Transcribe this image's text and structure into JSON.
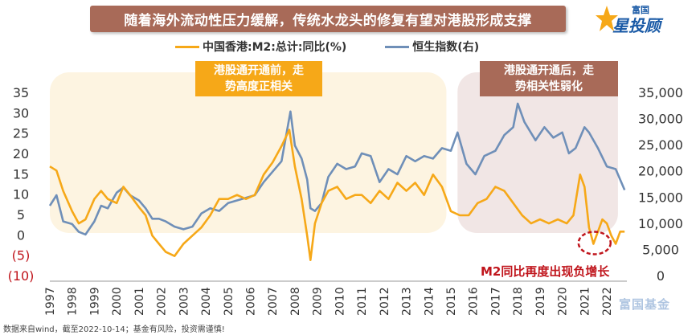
{
  "title": "随着海外流动性压力缓解，传统水龙头的修复有望对港股形成支撑",
  "logo": {
    "small_text": "富国",
    "big_text": "星投顾",
    "mark_icon": "star-logo-icon"
  },
  "footnote": "数据来自wind，截至2022-10-14；基金有风险，投资需谨慎!",
  "watermark": "富国基金",
  "annotations": {
    "left_box": [
      "港股通开通前，走",
      "势高度正相关"
    ],
    "right_box": [
      "港股通开通后，走",
      "势相关性弱化"
    ],
    "negative_label": "M2同比再度出现负增长"
  },
  "colors": {
    "m2": "#f6a818",
    "hsi": "#6f8fb8",
    "left_zone": "#fdf4e1",
    "right_zone": "#f1e6e5",
    "circle": "#c0151c",
    "neg_label": "#c0151c"
  },
  "chart_data": {
    "type": "line",
    "title": "随着海外流动性压力缓解，传统水龙头的修复有望对港股形成支撑",
    "legend": [
      "中国香港:M2:总计:同比(%)",
      "恒生指数(右)"
    ],
    "legend_position": "top",
    "x_tick_labels": [
      "1997",
      "1998",
      "1999",
      "2000",
      "2001",
      "2002",
      "2003",
      "2004",
      "2005",
      "2006",
      "2007",
      "2008",
      "2009",
      "2010",
      "2011",
      "2012",
      "2013",
      "2014",
      "2015",
      "2016",
      "2017",
      "2018",
      "2019",
      "2020",
      "2021",
      "2022"
    ],
    "xlim": [
      1997,
      2022.9
    ],
    "y_left": {
      "label": "",
      "ylim": [
        -10,
        35
      ],
      "tick_labels": [
        "35",
        "30",
        "25",
        "20",
        "15",
        "10",
        "5",
        "0",
        "(5)",
        "(10)"
      ],
      "tick_values": [
        35,
        30,
        25,
        20,
        15,
        10,
        5,
        0,
        -5,
        -10
      ]
    },
    "y_right": {
      "label": "",
      "ylim": [
        0,
        35000
      ],
      "tick_labels": [
        "35,000",
        "30,000",
        "25,000",
        "20,000",
        "15,000",
        "10,000",
        "5,000",
        "0"
      ],
      "tick_values": [
        35000,
        30000,
        25000,
        20000,
        15000,
        10000,
        5000,
        0
      ]
    },
    "shaded_regions": [
      {
        "name": "港股通开通前",
        "x_range": [
          1997,
          2014.8
        ]
      },
      {
        "name": "港股通开通后",
        "x_range": [
          2015.3,
          2022.5
        ]
      }
    ],
    "series": [
      {
        "name": "中国香港:M2:总计:同比(%)",
        "axis": "left",
        "x": [
          1997.0,
          1997.3,
          1997.6,
          1998.0,
          1998.3,
          1998.6,
          1999.0,
          1999.3,
          1999.6,
          2000.0,
          2000.3,
          2000.6,
          2001.0,
          2001.3,
          2001.6,
          2001.9,
          2002.2,
          2002.6,
          2003.0,
          2003.4,
          2003.8,
          2004.2,
          2004.6,
          2005.0,
          2005.4,
          2005.8,
          2006.2,
          2006.6,
          2007.0,
          2007.4,
          2007.75,
          2008.0,
          2008.3,
          2008.55,
          2008.7,
          2008.9,
          2009.2,
          2009.5,
          2009.9,
          2010.3,
          2010.7,
          2011.0,
          2011.4,
          2011.8,
          2012.2,
          2012.6,
          2013.0,
          2013.4,
          2013.8,
          2014.2,
          2014.6,
          2015.0,
          2015.4,
          2015.8,
          2016.2,
          2016.6,
          2017.0,
          2017.4,
          2017.8,
          2018.2,
          2018.6,
          2019.0,
          2019.4,
          2019.8,
          2020.2,
          2020.5,
          2020.8,
          2021.0,
          2021.2,
          2021.4,
          2021.6,
          2021.8,
          2022.0,
          2022.2,
          2022.4,
          2022.6,
          2022.8
        ],
        "values": [
          17,
          16,
          11,
          6,
          3,
          4,
          9,
          11,
          9,
          8,
          12,
          10,
          7,
          5,
          0,
          -2,
          -4,
          -5,
          -2,
          0,
          2,
          5,
          9,
          9,
          10,
          9,
          10,
          15,
          18,
          22,
          26,
          17,
          9,
          0,
          -6,
          3,
          8,
          11,
          12,
          9,
          10,
          10,
          8,
          11,
          9,
          13,
          11,
          13,
          10,
          15,
          12,
          6,
          5,
          5,
          8,
          9,
          12,
          11,
          8,
          5,
          3,
          4,
          3,
          4,
          3,
          5,
          15,
          12,
          2,
          -2,
          1,
          4,
          3,
          0,
          -2,
          1,
          1
        ]
      },
      {
        "name": "恒生指数(右)",
        "axis": "right",
        "x": [
          1997.0,
          1997.3,
          1997.6,
          1998.0,
          1998.3,
          1998.6,
          1999.0,
          1999.3,
          1999.6,
          2000.0,
          2000.3,
          2000.6,
          2001.0,
          2001.3,
          2001.6,
          2001.9,
          2002.2,
          2002.6,
          2003.0,
          2003.4,
          2003.8,
          2004.2,
          2004.6,
          2005.0,
          2005.4,
          2005.8,
          2006.2,
          2006.6,
          2007.0,
          2007.4,
          2007.8,
          2008.0,
          2008.3,
          2008.55,
          2008.7,
          2008.9,
          2009.2,
          2009.5,
          2009.9,
          2010.3,
          2010.7,
          2011.0,
          2011.4,
          2011.8,
          2012.2,
          2012.6,
          2013.0,
          2013.4,
          2013.8,
          2014.2,
          2014.6,
          2015.0,
          2015.3,
          2015.7,
          2016.1,
          2016.5,
          2017.0,
          2017.4,
          2017.8,
          2018.0,
          2018.3,
          2018.8,
          2019.2,
          2019.6,
          2020.0,
          2020.3,
          2020.6,
          2021.0,
          2021.2,
          2021.6,
          2022.0,
          2022.4,
          2022.8
        ],
        "values": [
          13500,
          15500,
          10500,
          10000,
          8500,
          8000,
          10500,
          13500,
          13000,
          16000,
          17000,
          15500,
          14500,
          13000,
          11000,
          11000,
          10500,
          9500,
          9000,
          9500,
          12000,
          13000,
          12500,
          14000,
          14500,
          15000,
          15500,
          18000,
          20000,
          22000,
          31500,
          25000,
          22500,
          18500,
          13000,
          12500,
          14000,
          19000,
          21500,
          20500,
          21000,
          23500,
          23000,
          18000,
          20500,
          19500,
          23000,
          22000,
          23000,
          22500,
          24500,
          24000,
          27500,
          21500,
          19500,
          23000,
          24000,
          27000,
          28500,
          33000,
          29500,
          26000,
          28500,
          26500,
          27500,
          23500,
          24500,
          28500,
          27500,
          24500,
          21000,
          20500,
          16500
        ]
      }
    ]
  }
}
